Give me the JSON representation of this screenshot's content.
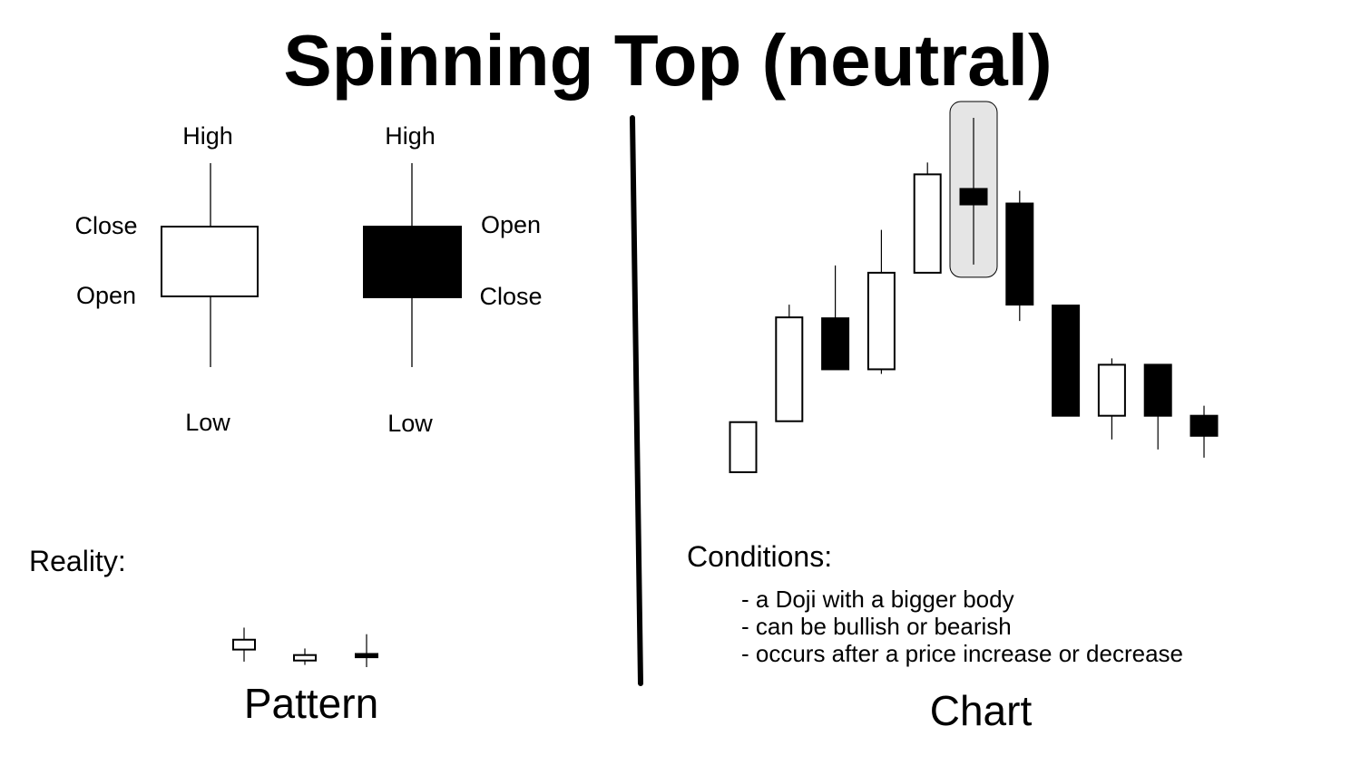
{
  "title": "Spinning Top (neutral)",
  "pattern": {
    "bullish": {
      "high_label": "High",
      "close_label": "Close",
      "open_label": "Open",
      "low_label": "Low",
      "body_fill": "#ffffff"
    },
    "bearish": {
      "high_label": "High",
      "open_label": "Open",
      "close_label": "Close",
      "low_label": "Low",
      "body_fill": "#000000"
    },
    "reality_label": "Reality:",
    "reality_candles": [
      {
        "high": 10.0,
        "open": 8.0,
        "close": 8.9,
        "low": 6.9
      },
      {
        "high": 8.1,
        "open": 7.0,
        "close": 7.5,
        "low": 6.6
      },
      {
        "high": 9.4,
        "open": 7.6,
        "close": 7.3,
        "low": 6.4
      }
    ],
    "caption": "Pattern"
  },
  "chart": {
    "caption": "Chart",
    "highlight_fill": "#e5e5e5",
    "candles": [
      {
        "open": 0.0,
        "close": 5.5,
        "high": 5.5,
        "low": 0.0
      },
      {
        "open": 5.6,
        "close": 17.0,
        "high": 18.4,
        "low": 5.6
      },
      {
        "open": 16.9,
        "close": 11.3,
        "high": 22.7,
        "low": 11.3
      },
      {
        "open": 11.3,
        "close": 21.9,
        "high": 26.6,
        "low": 10.8
      },
      {
        "open": 21.9,
        "close": 32.7,
        "high": 34.0,
        "low": 21.9
      },
      {
        "open": 31.1,
        "close": 29.4,
        "high": 38.9,
        "low": 22.8
      },
      {
        "open": 29.5,
        "close": 18.4,
        "high": 30.9,
        "low": 16.6
      },
      {
        "open": 18.3,
        "close": 6.2,
        "high": 18.3,
        "low": 6.2
      },
      {
        "open": 6.2,
        "close": 11.8,
        "high": 12.5,
        "low": 3.6
      },
      {
        "open": 11.8,
        "close": 6.2,
        "high": 11.8,
        "low": 2.5
      },
      {
        "open": 6.2,
        "close": 4.0,
        "high": 7.3,
        "low": 1.6
      }
    ],
    "highlight_index": 5
  },
  "conditions": {
    "heading": "Conditions:",
    "items": [
      "- a Doji with a bigger body",
      "- can be bullish or bearish",
      "- occurs after a price increase or decrease"
    ]
  }
}
